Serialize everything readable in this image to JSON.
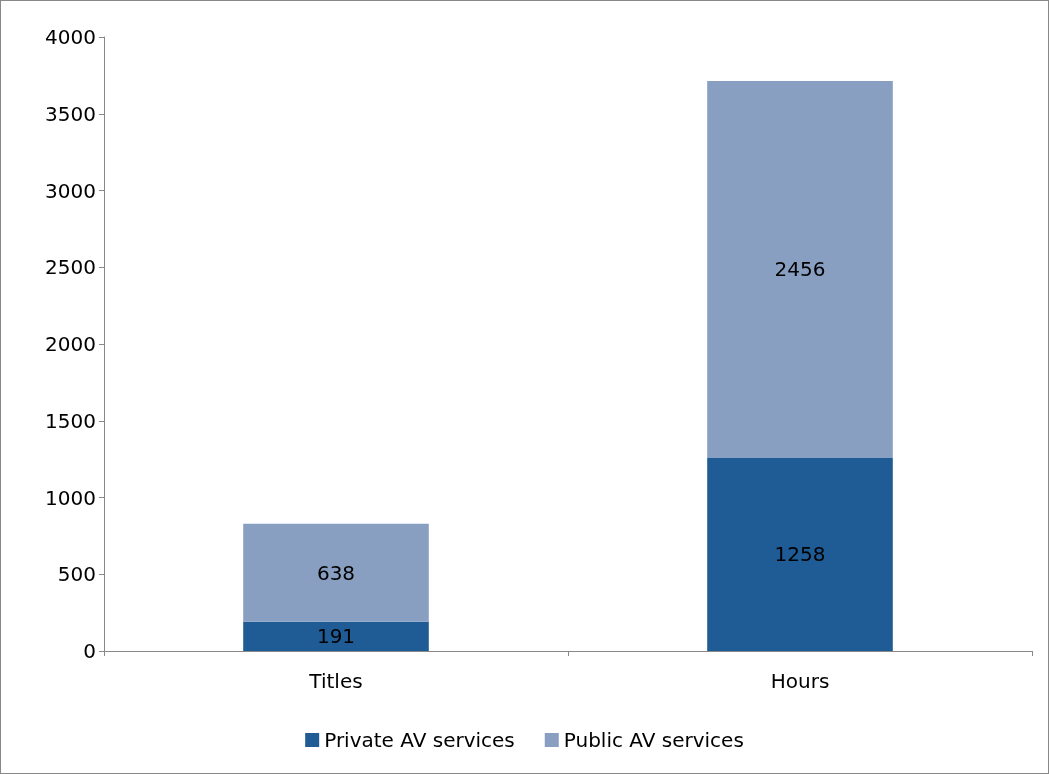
{
  "chart_data": {
    "type": "bar",
    "stacked": true,
    "categories": [
      "Titles",
      "Hours"
    ],
    "series": [
      {
        "name": "Private AV services",
        "color": "#1f5b94",
        "values": [
          191,
          1258
        ]
      },
      {
        "name": "Public AV services",
        "color": "#899fc1",
        "values": [
          638,
          2456
        ]
      }
    ],
    "ylim": [
      0,
      4000
    ],
    "yticks": [
      0,
      500,
      1000,
      1500,
      2000,
      2500,
      3000,
      3500,
      4000
    ],
    "grid": false,
    "legend": "bottom",
    "data_labels": true
  }
}
